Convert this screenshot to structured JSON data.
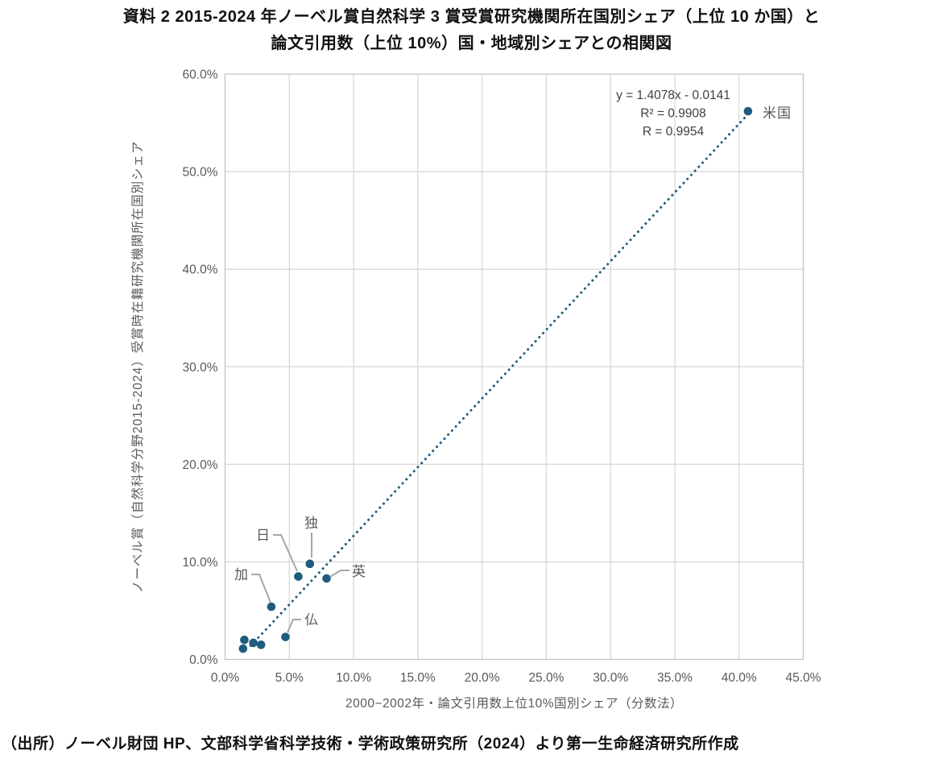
{
  "title": {
    "line1": "資料 2  2015-2024 年ノーベル賞自然科学 3 賞受賞研究機関所在国別シェア（上位 10 か国）と",
    "line2": "論文引用数（上位 10%）国・地域別シェアとの相関図"
  },
  "source": "（出所）ノーベル財団 HP、文部科学省科学技術・学術政策研究所（2024）より第一生命経済研究所作成",
  "colors": {
    "point": "#1F5C7E",
    "trendline": "#1F5C7E",
    "gridline": "#D9D9D9",
    "plot_border": "#C6C6C6",
    "axis_text": "#595959",
    "annotation_text": "#404040",
    "leader_line": "#A6A6A6"
  },
  "chart_data": {
    "type": "scatter",
    "title": "",
    "xlabel": "2000−2002年・論文引用数上位10%国別シェア（分数法）",
    "ylabel": "ノーベル賞（自然科学分野2015-2024）受賞時在籍研究機関所在国別シェア",
    "xlim": [
      0,
      45
    ],
    "ylim": [
      0,
      60
    ],
    "x_ticks": [
      0,
      5,
      10,
      15,
      20,
      25,
      30,
      35,
      40,
      45
    ],
    "x_tick_labels": [
      "0.0%",
      "5.0%",
      "10.0%",
      "15.0%",
      "20.0%",
      "25.0%",
      "30.0%",
      "35.0%",
      "40.0%",
      "45.0%"
    ],
    "y_ticks": [
      0,
      10,
      20,
      30,
      40,
      50,
      60
    ],
    "y_tick_labels": [
      "0.0%",
      "10.0%",
      "20.0%",
      "30.0%",
      "40.0%",
      "50.0%",
      "60.0%"
    ],
    "grid": true,
    "points": [
      {
        "label": "米国",
        "x": 40.7,
        "y": 56.2
      },
      {
        "label": "英",
        "x": 7.9,
        "y": 8.3
      },
      {
        "label": "独",
        "x": 6.6,
        "y": 9.8
      },
      {
        "label": "日",
        "x": 5.7,
        "y": 8.5
      },
      {
        "label": "加",
        "x": 3.6,
        "y": 5.4
      },
      {
        "label": "仏",
        "x": 4.7,
        "y": 2.3
      },
      {
        "label": "",
        "x": 1.5,
        "y": 2.0
      },
      {
        "label": "",
        "x": 1.4,
        "y": 1.1
      },
      {
        "label": "",
        "x": 2.2,
        "y": 1.7
      },
      {
        "label": "",
        "x": 2.8,
        "y": 1.5
      }
    ],
    "trendline": {
      "style": "dotted",
      "slope": 1.4078,
      "intercept": -0.0141,
      "x_range_pct": [
        2.0,
        40.7
      ],
      "equation": "y = 1.4078x - 0.0141",
      "r_squared": "R² = 0.9908",
      "r": "R = 0.9954"
    }
  }
}
